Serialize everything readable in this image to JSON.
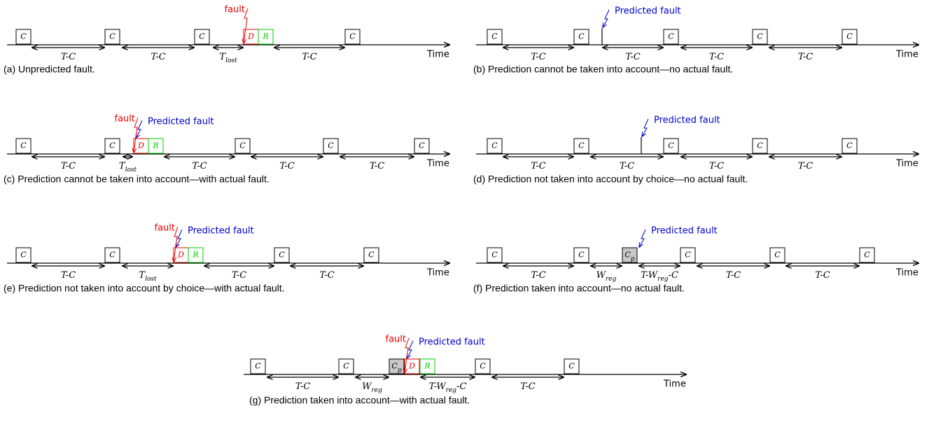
{
  "panels": [
    {
      "caption": "(a) Unpredicted fault.",
      "time": "Time",
      "fault": "fault",
      "boxes": [
        [
          "C"
        ],
        [
          "C"
        ],
        [
          "C"
        ],
        [
          "D"
        ],
        [
          "R"
        ],
        [
          "C"
        ]
      ],
      "arrows": [
        [
          "T-C"
        ],
        [
          "T-C"
        ],
        [
          "T",
          "lost"
        ],
        [
          "T-C"
        ]
      ]
    },
    {
      "caption": "(b) Prediction cannot be taken into account—no actual fault.",
      "time": "Time",
      "predicted": "Predicted fault",
      "boxes": [
        [
          "C"
        ],
        [
          "C"
        ],
        [
          "C"
        ],
        [
          "C"
        ],
        [
          "C"
        ]
      ],
      "arrows": [
        [
          "T-C"
        ],
        [
          "T-C"
        ],
        [
          "T-C"
        ],
        [
          "T-C"
        ]
      ]
    },
    {
      "caption": "(c) Prediction cannot be taken into account—with actual fault.",
      "time": "Time",
      "fault": "fault",
      "predicted": "Predicted fault",
      "boxes": [
        [
          "C"
        ],
        [
          "C"
        ],
        [
          "D"
        ],
        [
          "R"
        ],
        [
          "C"
        ],
        [
          "C"
        ],
        [
          "C"
        ]
      ],
      "arrows": [
        [
          "T-C"
        ],
        [
          "T",
          "lost"
        ],
        [
          "T-C"
        ],
        [
          "T-C"
        ],
        [
          "T-C"
        ]
      ]
    },
    {
      "caption": "(d) Prediction not taken into account by choice—no actual fault.",
      "time": "Time",
      "predicted": "Predicted fault",
      "boxes": [
        [
          "C"
        ],
        [
          "C"
        ],
        [
          "C"
        ],
        [
          "C"
        ],
        [
          "C"
        ]
      ],
      "arrows": [
        [
          "T-C"
        ],
        [
          "T-C"
        ],
        [
          "T-C"
        ],
        [
          "T-C"
        ]
      ]
    },
    {
      "caption": "(e) Prediction not taken into account by choice—with actual fault.",
      "time": "Time",
      "fault": "fault",
      "predicted": "Predicted fault",
      "boxes": [
        [
          "C"
        ],
        [
          "C"
        ],
        [
          "D"
        ],
        [
          "R"
        ],
        [
          "C"
        ],
        [
          "C"
        ]
      ],
      "arrows": [
        [
          "T-C"
        ],
        [
          "T",
          "lost"
        ],
        [
          "T-C"
        ],
        [
          "T-C"
        ]
      ]
    },
    {
      "caption": "(f) Prediction taken into account—no actual fault.",
      "time": "Time",
      "predicted": "Predicted fault",
      "boxes": [
        [
          "C"
        ],
        [
          "C"
        ],
        [
          "C",
          "p"
        ],
        [
          "C"
        ],
        [
          "C"
        ],
        [
          "C"
        ]
      ],
      "arrows": [
        [
          "T-C"
        ],
        [
          "W",
          "reg"
        ],
        [
          "T-W",
          "reg",
          "-C"
        ],
        [
          "T-C"
        ],
        [
          "T-C"
        ]
      ]
    },
    {
      "caption": "(g) Prediction taken into account—with actual fault.",
      "time": "Time",
      "fault": "fault",
      "predicted": "Predicted fault",
      "boxes": [
        [
          "C"
        ],
        [
          "C"
        ],
        [
          "C",
          "p"
        ],
        [
          "D"
        ],
        [
          "R"
        ],
        [
          "C"
        ],
        [
          "C"
        ]
      ],
      "arrows": [
        [
          "T-C"
        ],
        [
          "W",
          "reg"
        ],
        [
          "T-W",
          "reg",
          "-C"
        ],
        [
          "T-C"
        ]
      ]
    }
  ]
}
